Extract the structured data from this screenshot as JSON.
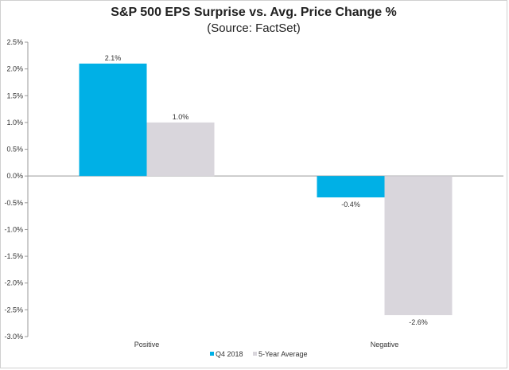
{
  "chart_data": {
    "type": "bar",
    "title": "S&P 500 EPS Surprise vs. Avg. Price Change %",
    "subtitle": "(Source: FactSet)",
    "categories": [
      "Positive",
      "Negative"
    ],
    "series": [
      {
        "name": "Q4 2018",
        "values": [
          2.1,
          -0.4
        ],
        "labels": [
          "2.1%",
          "-0.4%"
        ],
        "color": "#00b0e6"
      },
      {
        "name": "5-Year Average",
        "values": [
          1.0,
          -2.6
        ],
        "labels": [
          "1.0%",
          "-2.6%"
        ],
        "color": "#d9d6dc"
      }
    ],
    "ylim": [
      -3.0,
      2.5
    ],
    "yticks": [
      2.5,
      2.0,
      1.5,
      1.0,
      0.5,
      0.0,
      -0.5,
      -1.0,
      -1.5,
      -2.0,
      -2.5,
      -3.0
    ],
    "ytick_labels": [
      "2.5%",
      "2.0%",
      "1.5%",
      "1.0%",
      "0.5%",
      "0.0%",
      "-0.5%",
      "-1.0%",
      "-1.5%",
      "-2.0%",
      "-2.5%",
      "-3.0%"
    ],
    "xlabel": "",
    "ylabel": "",
    "grid": false,
    "legend_position": "bottom"
  }
}
